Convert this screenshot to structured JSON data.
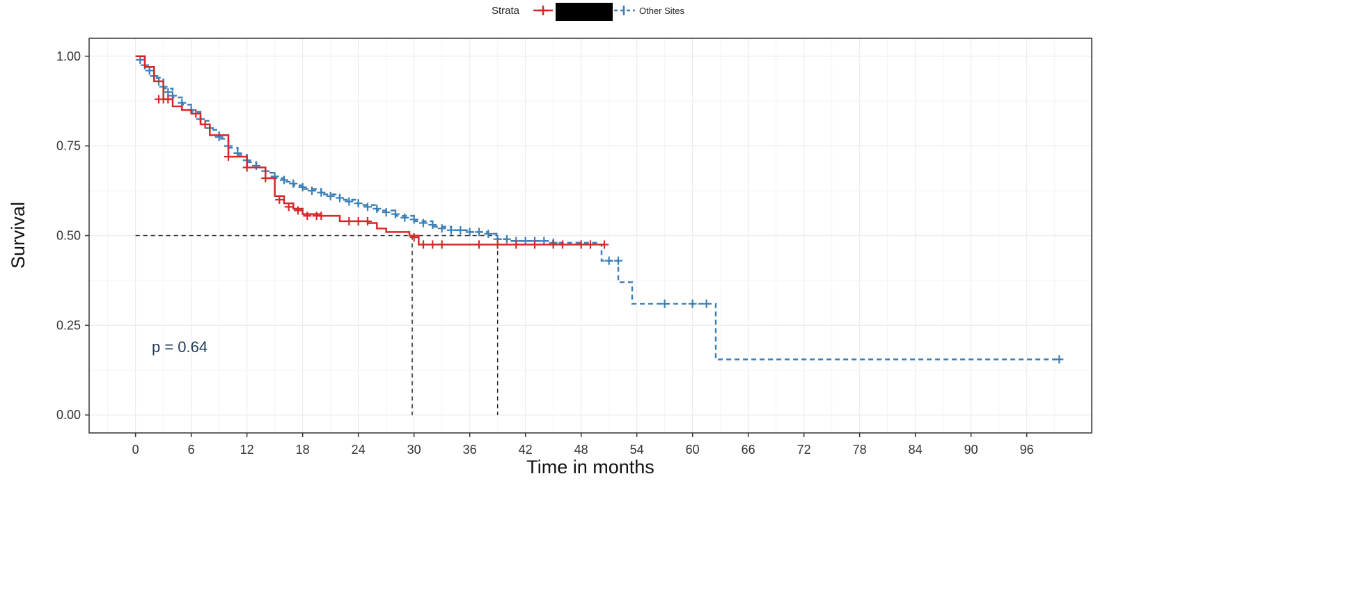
{
  "chart_data": {
    "type": "line",
    "xlabel": "Time in months",
    "ylabel": "Survival",
    "xlim": [
      -5,
      103
    ],
    "ylim": [
      -0.05,
      1.05
    ],
    "x_ticks": [
      0,
      6,
      12,
      18,
      24,
      30,
      36,
      42,
      48,
      54,
      60,
      66,
      72,
      78,
      84,
      90,
      96
    ],
    "y_ticks": [
      0.0,
      0.25,
      0.5,
      0.75,
      1.0
    ],
    "y_tick_labels": [
      "0.00",
      "0.25",
      "0.50",
      "0.75",
      "1.00"
    ],
    "grid": true,
    "legend": {
      "position": "top",
      "title": "Strata",
      "entries": [
        "",
        "Other Sites"
      ]
    },
    "annotation": "p = 0.64",
    "median_survival": {
      "y": 0.5,
      "x": [
        29.8,
        39.0
      ]
    },
    "series": [
      {
        "name": "",
        "color": "#d62728",
        "dashed": false,
        "steps": [
          [
            0,
            1.0
          ],
          [
            1,
            0.97
          ],
          [
            2,
            0.93
          ],
          [
            3,
            0.88
          ],
          [
            4,
            0.86
          ],
          [
            5,
            0.85
          ],
          [
            6,
            0.84
          ],
          [
            7,
            0.81
          ],
          [
            8,
            0.78
          ],
          [
            10,
            0.72
          ],
          [
            12,
            0.69
          ],
          [
            14,
            0.66
          ],
          [
            15,
            0.61
          ],
          [
            16,
            0.59
          ],
          [
            17,
            0.575
          ],
          [
            18,
            0.56
          ],
          [
            20,
            0.555
          ],
          [
            22,
            0.54
          ],
          [
            25,
            0.535
          ],
          [
            26,
            0.52
          ],
          [
            27,
            0.51
          ],
          [
            29.5,
            0.5
          ],
          [
            30.5,
            0.475
          ],
          [
            50.5,
            0.475
          ]
        ],
        "censor": [
          [
            2.5,
            0.88
          ],
          [
            3,
            0.88
          ],
          [
            3.5,
            0.88
          ],
          [
            6.5,
            0.84
          ],
          [
            7.5,
            0.81
          ],
          [
            10,
            0.72
          ],
          [
            12,
            0.69
          ],
          [
            14,
            0.66
          ],
          [
            15.5,
            0.6
          ],
          [
            16.5,
            0.58
          ],
          [
            17.5,
            0.57
          ],
          [
            18.5,
            0.555
          ],
          [
            19.5,
            0.555
          ],
          [
            20,
            0.555
          ],
          [
            23,
            0.54
          ],
          [
            24,
            0.54
          ],
          [
            25,
            0.54
          ],
          [
            30,
            0.495
          ],
          [
            31,
            0.475
          ],
          [
            32,
            0.475
          ],
          [
            33,
            0.475
          ],
          [
            37,
            0.475
          ],
          [
            39,
            0.475
          ],
          [
            41,
            0.475
          ],
          [
            43,
            0.475
          ],
          [
            45,
            0.475
          ],
          [
            46,
            0.475
          ],
          [
            48,
            0.475
          ],
          [
            49,
            0.475
          ],
          [
            50.5,
            0.475
          ]
        ]
      },
      {
        "name": "Other Sites",
        "color": "#3b7fb6",
        "dashed": true,
        "steps": [
          [
            0,
            1.0
          ],
          [
            1,
            0.97
          ],
          [
            2,
            0.94
          ],
          [
            3,
            0.91
          ],
          [
            4,
            0.885
          ],
          [
            5,
            0.865
          ],
          [
            6,
            0.845
          ],
          [
            7,
            0.82
          ],
          [
            8,
            0.795
          ],
          [
            9,
            0.77
          ],
          [
            10,
            0.745
          ],
          [
            11,
            0.725
          ],
          [
            12,
            0.705
          ],
          [
            13,
            0.69
          ],
          [
            14,
            0.675
          ],
          [
            15,
            0.66
          ],
          [
            16,
            0.65
          ],
          [
            17,
            0.64
          ],
          [
            18,
            0.63
          ],
          [
            20,
            0.615
          ],
          [
            22,
            0.6
          ],
          [
            24,
            0.585
          ],
          [
            26,
            0.57
          ],
          [
            28,
            0.555
          ],
          [
            30,
            0.54
          ],
          [
            32,
            0.525
          ],
          [
            34,
            0.515
          ],
          [
            36,
            0.51
          ],
          [
            38,
            0.505
          ],
          [
            39,
            0.49
          ],
          [
            40,
            0.485
          ],
          [
            45,
            0.48
          ],
          [
            50,
            0.475
          ],
          [
            50.2,
            0.43
          ],
          [
            52,
            0.37
          ],
          [
            53.5,
            0.31
          ],
          [
            62,
            0.31
          ],
          [
            62.5,
            0.155
          ],
          [
            99.5,
            0.155
          ]
        ],
        "censor": [
          [
            0.5,
            0.99
          ],
          [
            1,
            0.975
          ],
          [
            1.5,
            0.96
          ],
          [
            2,
            0.945
          ],
          [
            2.5,
            0.93
          ],
          [
            3,
            0.915
          ],
          [
            3.5,
            0.9
          ],
          [
            4,
            0.89
          ],
          [
            5,
            0.87
          ],
          [
            6,
            0.85
          ],
          [
            7,
            0.825
          ],
          [
            8,
            0.8
          ],
          [
            9,
            0.775
          ],
          [
            10,
            0.75
          ],
          [
            11,
            0.73
          ],
          [
            12,
            0.71
          ],
          [
            13,
            0.695
          ],
          [
            14,
            0.68
          ],
          [
            15,
            0.665
          ],
          [
            16,
            0.655
          ],
          [
            17,
            0.645
          ],
          [
            18,
            0.635
          ],
          [
            19,
            0.625
          ],
          [
            20,
            0.62
          ],
          [
            21,
            0.61
          ],
          [
            22,
            0.605
          ],
          [
            23,
            0.595
          ],
          [
            24,
            0.59
          ],
          [
            25,
            0.58
          ],
          [
            26,
            0.575
          ],
          [
            27,
            0.565
          ],
          [
            28,
            0.56
          ],
          [
            29,
            0.55
          ],
          [
            30,
            0.545
          ],
          [
            31,
            0.535
          ],
          [
            32,
            0.53
          ],
          [
            33,
            0.52
          ],
          [
            34,
            0.515
          ],
          [
            35,
            0.515
          ],
          [
            36,
            0.51
          ],
          [
            37,
            0.51
          ],
          [
            38,
            0.505
          ],
          [
            39,
            0.49
          ],
          [
            40,
            0.49
          ],
          [
            41,
            0.485
          ],
          [
            42,
            0.485
          ],
          [
            43,
            0.485
          ],
          [
            44,
            0.485
          ],
          [
            45,
            0.48
          ],
          [
            51,
            0.43
          ],
          [
            52,
            0.43
          ],
          [
            57,
            0.31
          ],
          [
            60,
            0.31
          ],
          [
            61.5,
            0.31
          ],
          [
            99.5,
            0.155
          ]
        ]
      }
    ]
  }
}
